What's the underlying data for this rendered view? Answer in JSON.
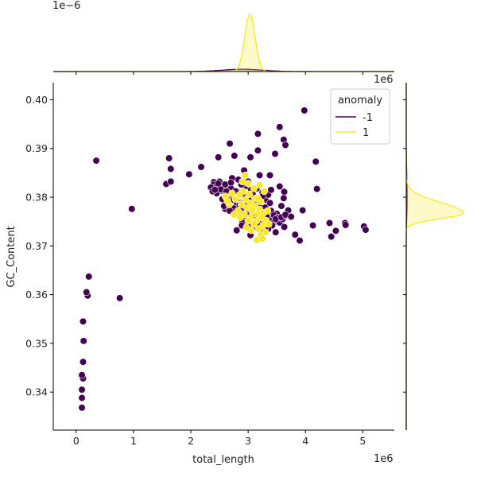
{
  "chart_data": {
    "type": "scatter",
    "xlabel": "total_length",
    "ylabel": "GC_Content",
    "x_offset_label": "1e6",
    "top_marginal_offset_label": "1e−6",
    "right_marginal_offset_label": "1e6",
    "xlim": [
      -0.4,
      5.55
    ],
    "ylim": [
      0.3322,
      0.4035
    ],
    "x_ticks": [
      "0",
      "1",
      "2",
      "3",
      "4",
      "5"
    ],
    "x_tick_values": [
      0,
      1,
      2,
      3,
      4,
      5
    ],
    "y_ticks": [
      "0.34",
      "0.35",
      "0.36",
      "0.37",
      "0.38",
      "0.39",
      "0.40"
    ],
    "y_tick_values": [
      0.34,
      0.35,
      0.36,
      0.37,
      0.38,
      0.39,
      0.4
    ],
    "legend": {
      "title": "anomaly",
      "placement": "top-right",
      "entries": [
        {
          "label": "-1",
          "color": "#440154"
        },
        {
          "label": "1",
          "color": "#fde725"
        }
      ]
    },
    "series": [
      {
        "name": "-1",
        "color": "#440154",
        "points": [
          [
            0.1,
            0.3368
          ],
          [
            0.1,
            0.3388
          ],
          [
            0.1,
            0.3405
          ],
          [
            0.12,
            0.3428
          ],
          [
            0.1,
            0.3435
          ],
          [
            0.12,
            0.3462
          ],
          [
            0.13,
            0.3505
          ],
          [
            0.12,
            0.3545
          ],
          [
            0.2,
            0.3598
          ],
          [
            0.18,
            0.3605
          ],
          [
            0.22,
            0.3637
          ],
          [
            0.76,
            0.3593
          ],
          [
            0.97,
            0.3776
          ],
          [
            0.35,
            0.3875
          ],
          [
            1.57,
            0.3827
          ],
          [
            1.65,
            0.3832
          ],
          [
            1.65,
            0.3858
          ],
          [
            1.62,
            0.388
          ],
          [
            1.97,
            0.3847
          ],
          [
            2.18,
            0.3862
          ],
          [
            2.48,
            0.3882
          ],
          [
            2.68,
            0.391
          ],
          [
            2.76,
            0.3885
          ],
          [
            3.04,
            0.3882
          ],
          [
            3.17,
            0.3896
          ],
          [
            3.17,
            0.393
          ],
          [
            3.55,
            0.3944
          ],
          [
            3.62,
            0.3918
          ],
          [
            3.65,
            0.3907
          ],
          [
            3.47,
            0.3889
          ],
          [
            3.98,
            0.3978
          ],
          [
            4.18,
            0.3873
          ],
          [
            4.2,
            0.3817
          ],
          [
            3.95,
            0.3773
          ],
          [
            4.13,
            0.3742
          ],
          [
            4.42,
            0.3747
          ],
          [
            4.45,
            0.3719
          ],
          [
            4.53,
            0.3731
          ],
          [
            4.69,
            0.3747
          ],
          [
            4.7,
            0.3743
          ],
          [
            5.02,
            0.374
          ],
          [
            5.05,
            0.3733
          ],
          [
            3.9,
            0.3711
          ],
          [
            3.82,
            0.3723
          ],
          [
            3.63,
            0.3739
          ],
          [
            3.48,
            0.3728
          ],
          [
            3.3,
            0.3737
          ],
          [
            3.04,
            0.3722
          ],
          [
            2.89,
            0.3742
          ],
          [
            2.8,
            0.3732
          ],
          [
            3.38,
            0.3845
          ],
          [
            3.4,
            0.3815
          ],
          [
            3.55,
            0.3822
          ],
          [
            3.63,
            0.3811
          ],
          [
            3.62,
            0.3798
          ],
          [
            2.7,
            0.383
          ],
          [
            2.78,
            0.3812
          ],
          [
            3.0,
            0.3832
          ],
          [
            3.2,
            0.3845
          ],
          [
            3.15,
            0.3818
          ],
          [
            3.25,
            0.3802
          ],
          [
            2.93,
            0.3855
          ],
          [
            2.83,
            0.3836
          ],
          [
            3.58,
            0.3782
          ],
          [
            3.7,
            0.3773
          ],
          [
            3.65,
            0.3764
          ],
          [
            3.75,
            0.376
          ]
        ],
        "cluster": {
          "points": [
            [
              2.4,
              0.3831
            ],
            [
              2.4,
              0.3826
            ],
            [
              2.45,
              0.3822
            ],
            [
              2.5,
              0.3818
            ],
            [
              2.55,
              0.3813
            ],
            [
              2.6,
              0.3808
            ],
            [
              2.65,
              0.3803
            ],
            [
              2.7,
              0.3798
            ],
            [
              2.75,
              0.3794
            ],
            [
              2.8,
              0.3789
            ],
            [
              2.85,
              0.3784
            ],
            [
              2.9,
              0.3779
            ],
            [
              2.95,
              0.3774
            ],
            [
              3.0,
              0.377
            ],
            [
              3.05,
              0.3765
            ],
            [
              3.1,
              0.376
            ],
            [
              3.15,
              0.3755
            ],
            [
              3.2,
              0.375
            ],
            [
              3.25,
              0.3746
            ],
            [
              3.3,
              0.3741
            ],
            [
              3.35,
              0.3756
            ],
            [
              3.4,
              0.3751
            ],
            [
              3.45,
              0.3748
            ],
            [
              3.5,
              0.3752
            ],
            [
              3.55,
              0.3748
            ],
            [
              3.6,
              0.3755
            ],
            [
              3.65,
              0.3762
            ],
            [
              2.5,
              0.3832
            ],
            [
              2.6,
              0.3826
            ],
            [
              2.7,
              0.3818
            ],
            [
              2.8,
              0.3812
            ],
            [
              2.9,
              0.3806
            ],
            [
              3.0,
              0.3799
            ],
            [
              3.1,
              0.3792
            ],
            [
              3.2,
              0.3786
            ],
            [
              3.3,
              0.3779
            ],
            [
              3.4,
              0.3772
            ],
            [
              3.5,
              0.3766
            ],
            [
              2.45,
              0.3808
            ],
            [
              2.55,
              0.3796
            ],
            [
              2.65,
              0.3786
            ],
            [
              2.75,
              0.3777
            ],
            [
              2.85,
              0.3766
            ],
            [
              2.95,
              0.3756
            ],
            [
              3.05,
              0.3747
            ],
            [
              3.15,
              0.3738
            ],
            [
              2.35,
              0.382
            ],
            [
              2.38,
              0.3812
            ],
            [
              2.6,
              0.3776
            ],
            [
              3.45,
              0.3763
            ],
            [
              3.52,
              0.3758
            ],
            [
              3.42,
              0.3742
            ],
            [
              3.35,
              0.3735
            ],
            [
              3.25,
              0.3732
            ],
            [
              2.72,
              0.3839
            ],
            [
              2.95,
              0.3822
            ],
            [
              3.05,
              0.3815
            ],
            [
              3.25,
              0.381
            ],
            [
              3.3,
              0.3795
            ],
            [
              3.38,
              0.3788
            ],
            [
              2.58,
              0.3782
            ],
            [
              2.68,
              0.3772
            ],
            [
              2.78,
              0.3765
            ],
            [
              2.9,
              0.3748
            ],
            [
              3.0,
              0.3742
            ],
            [
              2.48,
              0.3828
            ],
            [
              2.52,
              0.3816
            ],
            [
              2.62,
              0.3812
            ],
            [
              2.72,
              0.3806
            ],
            [
              2.82,
              0.3798
            ],
            [
              2.92,
              0.379
            ],
            [
              3.02,
              0.3783
            ],
            [
              3.12,
              0.3776
            ],
            [
              3.22,
              0.3768
            ],
            [
              3.32,
              0.3762
            ],
            [
              3.48,
              0.3755
            ],
            [
              3.58,
              0.3759
            ],
            [
              3.18,
              0.3742
            ],
            [
              3.28,
              0.3748
            ],
            [
              2.42,
              0.3815
            ],
            [
              2.62,
              0.3798
            ],
            [
              2.88,
              0.3826
            ],
            [
              3.08,
              0.3806
            ],
            [
              3.35,
              0.3805
            ],
            [
              2.98,
              0.3762
            ]
          ]
        }
      },
      {
        "name": "1",
        "color": "#fde725",
        "points": [
          [
            2.72,
            0.3808
          ],
          [
            2.83,
            0.3801
          ],
          [
            2.95,
            0.3795
          ],
          [
            3.05,
            0.3788
          ],
          [
            3.12,
            0.3782
          ],
          [
            3.2,
            0.3775
          ],
          [
            3.27,
            0.3768
          ],
          [
            2.88,
            0.3785
          ],
          [
            2.98,
            0.3778
          ],
          [
            3.08,
            0.3771
          ],
          [
            3.16,
            0.3765
          ],
          [
            3.24,
            0.3758
          ],
          [
            3.31,
            0.3752
          ],
          [
            2.78,
            0.3796
          ],
          [
            2.91,
            0.3812
          ],
          [
            3.02,
            0.3806
          ],
          [
            3.13,
            0.3798
          ],
          [
            3.22,
            0.3791
          ],
          [
            2.67,
            0.3785
          ],
          [
            2.82,
            0.3772
          ],
          [
            2.93,
            0.3765
          ],
          [
            3.04,
            0.3758
          ],
          [
            3.14,
            0.3751
          ],
          [
            3.26,
            0.3742
          ],
          [
            3.18,
            0.3735
          ],
          [
            3.3,
            0.3728
          ],
          [
            3.22,
            0.3722
          ],
          [
            3.1,
            0.3745
          ],
          [
            3.0,
            0.3752
          ],
          [
            2.86,
            0.3758
          ],
          [
            2.75,
            0.3764
          ],
          [
            3.36,
            0.3745
          ],
          [
            3.34,
            0.3772
          ],
          [
            3.1,
            0.3818
          ],
          [
            3.2,
            0.3825
          ],
          [
            3.28,
            0.3812
          ],
          [
            3.0,
            0.3828
          ],
          [
            2.9,
            0.3832
          ],
          [
            2.95,
            0.3845
          ],
          [
            2.6,
            0.3802
          ],
          [
            2.64,
            0.3792
          ],
          [
            3.15,
            0.3712
          ],
          [
            3.25,
            0.3715
          ],
          [
            3.05,
            0.3732
          ],
          [
            2.97,
            0.3738
          ],
          [
            3.07,
            0.3775
          ],
          [
            2.85,
            0.3805
          ],
          [
            3.17,
            0.3798
          ]
        ]
      }
    ],
    "top_marginal": {
      "type": "kde",
      "series": [
        {
          "name": "1",
          "color": "#fde725",
          "peak_x": 3.03,
          "peak_relative_height": 1.0
        },
        {
          "name": "-1",
          "color": "#440154",
          "peak_x": 2.9,
          "peak_relative_height": 0.04
        }
      ]
    },
    "right_marginal": {
      "type": "kde",
      "series": [
        {
          "name": "1",
          "color": "#fde725",
          "peak_y": 0.3767,
          "peak_relative_height": 1.0
        },
        {
          "name": "-1",
          "color": "#440154",
          "peak_y": 0.3795,
          "peak_relative_height": 0.08
        }
      ]
    }
  }
}
